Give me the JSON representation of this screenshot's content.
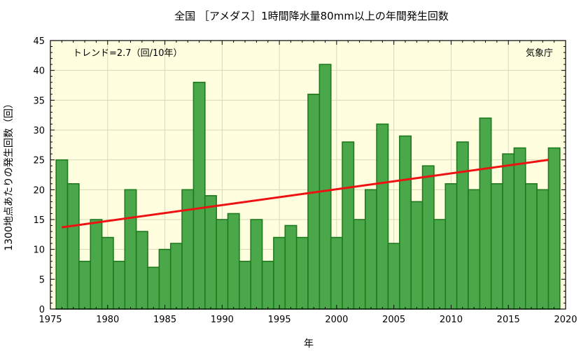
{
  "chart_data": {
    "type": "bar",
    "title": "全国 ［アメダス］1時間降水量80mm以上の年間発生回数",
    "xlabel": "年",
    "ylabel": "1300地点あたりの発生回数（回）",
    "trend_label": "トレンド=2.7（回/10年）",
    "source_label": "気象庁",
    "x": [
      1976,
      1977,
      1978,
      1979,
      1980,
      1981,
      1982,
      1983,
      1984,
      1985,
      1986,
      1987,
      1988,
      1989,
      1990,
      1991,
      1992,
      1993,
      1994,
      1995,
      1996,
      1997,
      1998,
      1999,
      2000,
      2001,
      2002,
      2003,
      2004,
      2005,
      2006,
      2007,
      2008,
      2009,
      2010,
      2011,
      2012,
      2013,
      2014,
      2015,
      2016,
      2017,
      2018,
      2019
    ],
    "values": [
      25,
      21,
      8,
      15,
      12,
      8,
      20,
      13,
      7,
      10,
      11,
      20,
      38,
      19,
      15,
      16,
      8,
      15,
      8,
      12,
      14,
      12,
      36,
      41,
      12,
      28,
      15,
      20,
      31,
      11,
      29,
      18,
      24,
      15,
      21,
      28,
      20,
      32,
      21,
      26,
      27,
      21,
      20,
      27
    ],
    "xlim": [
      1975,
      2020
    ],
    "ylim": [
      0,
      45
    ],
    "xticks": [
      1975,
      1980,
      1985,
      1990,
      1995,
      2000,
      2005,
      2010,
      2015,
      2020
    ],
    "yticks": [
      0,
      5,
      10,
      15,
      20,
      25,
      30,
      35,
      40,
      45
    ],
    "trend_line": {
      "x": [
        1976,
        2018.5
      ],
      "y": [
        13.7,
        25.0
      ]
    },
    "colors": {
      "bar_fill": "#4aa84a",
      "bar_stroke": "#1f7a1f",
      "trend": "#ee1111",
      "plot_bg": "#ffffe0"
    }
  }
}
